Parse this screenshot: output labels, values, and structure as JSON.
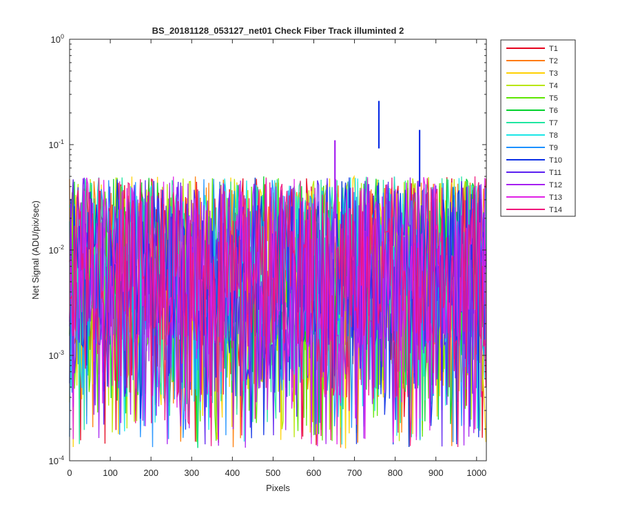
{
  "chart_data": {
    "type": "line",
    "title": "BS_20181128_053127_net01    Check Fiber     Track illuminted 2",
    "xlabel": "Pixels",
    "ylabel": "Net Signal (ADU/pix/sec)",
    "xlim": [
      0,
      1024
    ],
    "ylim": [
      0.0001,
      1
    ],
    "yscale": "log",
    "x_ticks": [
      "0",
      "100",
      "200",
      "300",
      "400",
      "500",
      "600",
      "700",
      "800",
      "900",
      "1000"
    ],
    "y_ticks": [
      {
        "base": "10",
        "exp": "-4",
        "value": 0.0001
      },
      {
        "base": "10",
        "exp": "-3",
        "value": 0.001
      },
      {
        "base": "10",
        "exp": "-2",
        "value": 0.01
      },
      {
        "base": "10",
        "exp": "-1",
        "value": 0.1
      },
      {
        "base": "10",
        "exp": "0",
        "value": 1
      }
    ],
    "grid": false,
    "legend_position": "outside-right",
    "series": [
      {
        "name": "T1",
        "color": "#e6001a"
      },
      {
        "name": "T2",
        "color": "#ff7a00"
      },
      {
        "name": "T3",
        "color": "#ffd000"
      },
      {
        "name": "T4",
        "color": "#b8e600"
      },
      {
        "name": "T5",
        "color": "#5ce600"
      },
      {
        "name": "T6",
        "color": "#00d12a"
      },
      {
        "name": "T7",
        "color": "#1ee6a0"
      },
      {
        "name": "T8",
        "color": "#19e6e6"
      },
      {
        "name": "T9",
        "color": "#1a8fff"
      },
      {
        "name": "T10",
        "color": "#0a2de6"
      },
      {
        "name": "T11",
        "color": "#5a1ef0"
      },
      {
        "name": "T12",
        "color": "#a51ef0"
      },
      {
        "name": "T13",
        "color": "#e01ee6"
      },
      {
        "name": "T14",
        "color": "#f0147a"
      }
    ],
    "noise_model": {
      "typical_min": 0.0005,
      "typical_max": 0.05,
      "floor": 0.00013
    },
    "spikes": [
      {
        "series": "T10",
        "x": 760,
        "y_low": 0.092,
        "y_high": 0.26
      },
      {
        "series": "T10",
        "x": 860,
        "y_low": 0.04,
        "y_high": 0.138
      },
      {
        "series": "T12",
        "x": 652,
        "y_low": 0.02,
        "y_high": 0.11
      }
    ]
  }
}
